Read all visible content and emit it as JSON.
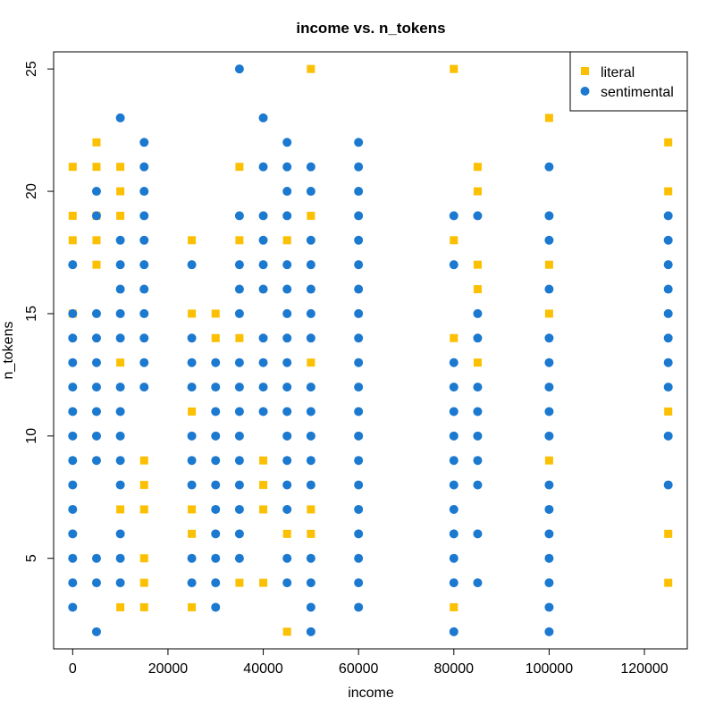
{
  "chart_data": {
    "type": "scatter",
    "title": "income vs. n_tokens",
    "xlabel": "income",
    "ylabel": "n_tokens",
    "xlim": [
      -4000,
      129000
    ],
    "ylim": [
      1.3,
      25.7
    ],
    "x_ticks": [
      0,
      20000,
      40000,
      60000,
      80000,
      100000,
      120000
    ],
    "x_tick_labels": [
      "0",
      "20000",
      "40000",
      "60000",
      "80000",
      "100000",
      "120000"
    ],
    "y_ticks": [
      5,
      10,
      15,
      20,
      25
    ],
    "y_tick_labels": [
      "5",
      "10",
      "15",
      "20",
      "25"
    ],
    "legend_position": "top-right",
    "series": [
      {
        "name": "literal",
        "marker": "square",
        "color": "#FBC002",
        "points": [
          [
            0,
            21
          ],
          [
            0,
            19
          ],
          [
            0,
            18
          ],
          [
            0,
            15
          ],
          [
            5000,
            22
          ],
          [
            5000,
            21
          ],
          [
            5000,
            19
          ],
          [
            5000,
            18
          ],
          [
            5000,
            17
          ],
          [
            10000,
            21
          ],
          [
            10000,
            20
          ],
          [
            10000,
            19
          ],
          [
            10000,
            13
          ],
          [
            10000,
            7
          ],
          [
            10000,
            3
          ],
          [
            15000,
            9
          ],
          [
            15000,
            8
          ],
          [
            15000,
            7
          ],
          [
            15000,
            5
          ],
          [
            15000,
            4
          ],
          [
            15000,
            3
          ],
          [
            25000,
            18
          ],
          [
            25000,
            15
          ],
          [
            25000,
            11
          ],
          [
            25000,
            7
          ],
          [
            25000,
            6
          ],
          [
            25000,
            3
          ],
          [
            30000,
            15
          ],
          [
            30000,
            14
          ],
          [
            35000,
            21
          ],
          [
            35000,
            18
          ],
          [
            35000,
            14
          ],
          [
            35000,
            4
          ],
          [
            40000,
            9
          ],
          [
            40000,
            8
          ],
          [
            40000,
            7
          ],
          [
            40000,
            4
          ],
          [
            45000,
            18
          ],
          [
            45000,
            6
          ],
          [
            45000,
            2
          ],
          [
            50000,
            25
          ],
          [
            50000,
            19
          ],
          [
            50000,
            13
          ],
          [
            50000,
            7
          ],
          [
            50000,
            6
          ],
          [
            80000,
            25
          ],
          [
            80000,
            18
          ],
          [
            80000,
            14
          ],
          [
            80000,
            3
          ],
          [
            85000,
            21
          ],
          [
            85000,
            20
          ],
          [
            85000,
            17
          ],
          [
            85000,
            16
          ],
          [
            85000,
            13
          ],
          [
            100000,
            23
          ],
          [
            100000,
            17
          ],
          [
            100000,
            15
          ],
          [
            100000,
            9
          ],
          [
            125000,
            22
          ],
          [
            125000,
            20
          ],
          [
            125000,
            11
          ],
          [
            125000,
            6
          ],
          [
            125000,
            4
          ]
        ]
      },
      {
        "name": "sentimental",
        "marker": "circle",
        "color": "#1C79D0",
        "points": [
          [
            0,
            17
          ],
          [
            0,
            15
          ],
          [
            0,
            14
          ],
          [
            0,
            13
          ],
          [
            0,
            12
          ],
          [
            0,
            11
          ],
          [
            0,
            10
          ],
          [
            0,
            9
          ],
          [
            0,
            8
          ],
          [
            0,
            7
          ],
          [
            0,
            6
          ],
          [
            0,
            5
          ],
          [
            0,
            4
          ],
          [
            0,
            3
          ],
          [
            5000,
            20
          ],
          [
            5000,
            19
          ],
          [
            5000,
            15
          ],
          [
            5000,
            14
          ],
          [
            5000,
            13
          ],
          [
            5000,
            12
          ],
          [
            5000,
            11
          ],
          [
            5000,
            10
          ],
          [
            5000,
            9
          ],
          [
            5000,
            5
          ],
          [
            5000,
            4
          ],
          [
            5000,
            2
          ],
          [
            10000,
            23
          ],
          [
            10000,
            18
          ],
          [
            10000,
            17
          ],
          [
            10000,
            16
          ],
          [
            10000,
            15
          ],
          [
            10000,
            14
          ],
          [
            10000,
            12
          ],
          [
            10000,
            11
          ],
          [
            10000,
            10
          ],
          [
            10000,
            9
          ],
          [
            10000,
            8
          ],
          [
            10000,
            6
          ],
          [
            10000,
            5
          ],
          [
            10000,
            4
          ],
          [
            15000,
            22
          ],
          [
            15000,
            21
          ],
          [
            15000,
            20
          ],
          [
            15000,
            19
          ],
          [
            15000,
            18
          ],
          [
            15000,
            17
          ],
          [
            15000,
            16
          ],
          [
            15000,
            15
          ],
          [
            15000,
            14
          ],
          [
            15000,
            13
          ],
          [
            15000,
            12
          ],
          [
            25000,
            17
          ],
          [
            25000,
            14
          ],
          [
            25000,
            13
          ],
          [
            25000,
            12
          ],
          [
            25000,
            10
          ],
          [
            25000,
            9
          ],
          [
            25000,
            8
          ],
          [
            25000,
            5
          ],
          [
            25000,
            4
          ],
          [
            30000,
            13
          ],
          [
            30000,
            12
          ],
          [
            30000,
            11
          ],
          [
            30000,
            10
          ],
          [
            30000,
            9
          ],
          [
            30000,
            8
          ],
          [
            30000,
            7
          ],
          [
            30000,
            6
          ],
          [
            30000,
            5
          ],
          [
            30000,
            4
          ],
          [
            30000,
            3
          ],
          [
            35000,
            25
          ],
          [
            35000,
            19
          ],
          [
            35000,
            17
          ],
          [
            35000,
            16
          ],
          [
            35000,
            15
          ],
          [
            35000,
            13
          ],
          [
            35000,
            12
          ],
          [
            35000,
            11
          ],
          [
            35000,
            10
          ],
          [
            35000,
            9
          ],
          [
            35000,
            8
          ],
          [
            35000,
            7
          ],
          [
            35000,
            6
          ],
          [
            35000,
            5
          ],
          [
            40000,
            23
          ],
          [
            40000,
            21
          ],
          [
            40000,
            19
          ],
          [
            40000,
            18
          ],
          [
            40000,
            17
          ],
          [
            40000,
            16
          ],
          [
            40000,
            14
          ],
          [
            40000,
            13
          ],
          [
            40000,
            12
          ],
          [
            40000,
            11
          ],
          [
            45000,
            22
          ],
          [
            45000,
            21
          ],
          [
            45000,
            20
          ],
          [
            45000,
            19
          ],
          [
            45000,
            17
          ],
          [
            45000,
            16
          ],
          [
            45000,
            15
          ],
          [
            45000,
            14
          ],
          [
            45000,
            13
          ],
          [
            45000,
            12
          ],
          [
            45000,
            11
          ],
          [
            45000,
            10
          ],
          [
            45000,
            9
          ],
          [
            45000,
            8
          ],
          [
            45000,
            7
          ],
          [
            45000,
            5
          ],
          [
            45000,
            4
          ],
          [
            50000,
            21
          ],
          [
            50000,
            20
          ],
          [
            50000,
            18
          ],
          [
            50000,
            17
          ],
          [
            50000,
            16
          ],
          [
            50000,
            15
          ],
          [
            50000,
            14
          ],
          [
            50000,
            12
          ],
          [
            50000,
            11
          ],
          [
            50000,
            10
          ],
          [
            50000,
            9
          ],
          [
            50000,
            8
          ],
          [
            50000,
            5
          ],
          [
            50000,
            4
          ],
          [
            50000,
            3
          ],
          [
            50000,
            2
          ],
          [
            60000,
            22
          ],
          [
            60000,
            21
          ],
          [
            60000,
            20
          ],
          [
            60000,
            19
          ],
          [
            60000,
            18
          ],
          [
            60000,
            17
          ],
          [
            60000,
            16
          ],
          [
            60000,
            15
          ],
          [
            60000,
            14
          ],
          [
            60000,
            13
          ],
          [
            60000,
            12
          ],
          [
            60000,
            11
          ],
          [
            60000,
            10
          ],
          [
            60000,
            9
          ],
          [
            60000,
            8
          ],
          [
            60000,
            7
          ],
          [
            60000,
            6
          ],
          [
            60000,
            5
          ],
          [
            60000,
            4
          ],
          [
            60000,
            3
          ],
          [
            80000,
            19
          ],
          [
            80000,
            17
          ],
          [
            80000,
            13
          ],
          [
            80000,
            12
          ],
          [
            80000,
            11
          ],
          [
            80000,
            10
          ],
          [
            80000,
            9
          ],
          [
            80000,
            8
          ],
          [
            80000,
            7
          ],
          [
            80000,
            6
          ],
          [
            80000,
            5
          ],
          [
            80000,
            4
          ],
          [
            80000,
            2
          ],
          [
            85000,
            19
          ],
          [
            85000,
            15
          ],
          [
            85000,
            14
          ],
          [
            85000,
            12
          ],
          [
            85000,
            11
          ],
          [
            85000,
            10
          ],
          [
            85000,
            9
          ],
          [
            85000,
            8
          ],
          [
            85000,
            6
          ],
          [
            85000,
            4
          ],
          [
            100000,
            21
          ],
          [
            100000,
            19
          ],
          [
            100000,
            18
          ],
          [
            100000,
            16
          ],
          [
            100000,
            14
          ],
          [
            100000,
            13
          ],
          [
            100000,
            12
          ],
          [
            100000,
            11
          ],
          [
            100000,
            10
          ],
          [
            100000,
            8
          ],
          [
            100000,
            7
          ],
          [
            100000,
            6
          ],
          [
            100000,
            5
          ],
          [
            100000,
            4
          ],
          [
            100000,
            3
          ],
          [
            100000,
            2
          ],
          [
            125000,
            19
          ],
          [
            125000,
            18
          ],
          [
            125000,
            17
          ],
          [
            125000,
            16
          ],
          [
            125000,
            15
          ],
          [
            125000,
            14
          ],
          [
            125000,
            13
          ],
          [
            125000,
            12
          ],
          [
            125000,
            10
          ],
          [
            125000,
            8
          ]
        ]
      }
    ]
  }
}
